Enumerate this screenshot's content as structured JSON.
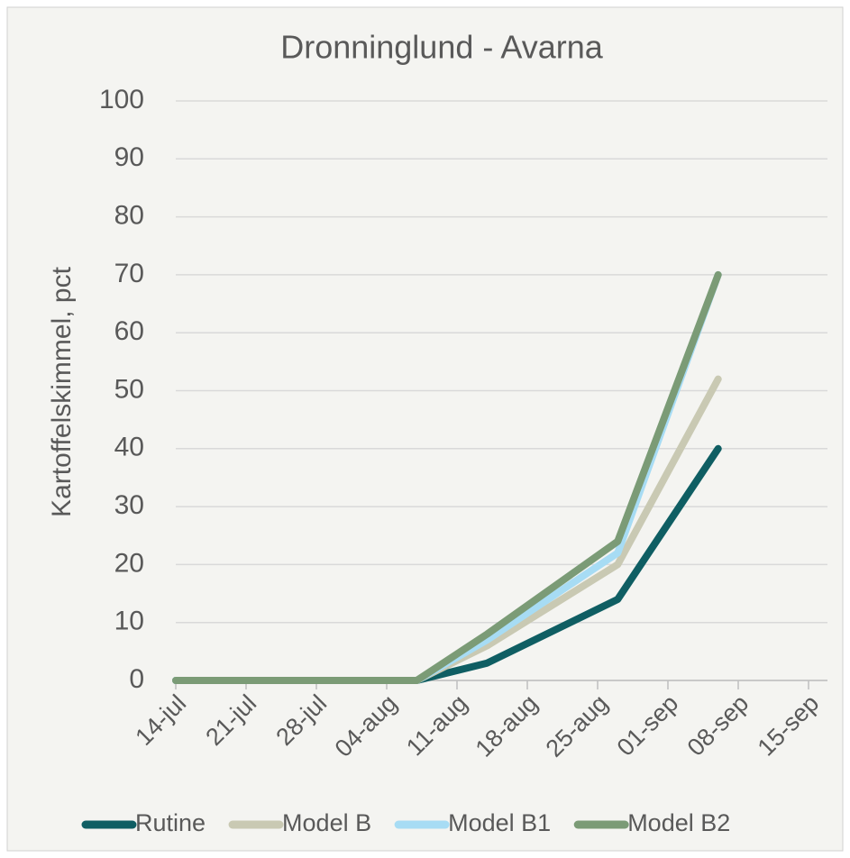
{
  "chart_data": {
    "type": "line",
    "title": "Dronninglund - Avarna",
    "y_label": "Kartoffelskimmel,  pct",
    "x": [
      "14-jul",
      "07-aug",
      "14-aug",
      "27-aug",
      "06-sep"
    ],
    "series": [
      {
        "name": "Rutine",
        "color": "#0f5e63",
        "values": [
          0,
          0,
          3,
          14,
          40
        ]
      },
      {
        "name": "Model B",
        "color": "#c9c9b3",
        "values": [
          0,
          0,
          6,
          20,
          52
        ]
      },
      {
        "name": "Model B1",
        "color": "#a7dcf4",
        "values": [
          0,
          0,
          7,
          22,
          70
        ]
      },
      {
        "name": "Model B2",
        "color": "#7b9b76",
        "values": [
          0,
          0,
          8,
          24,
          70
        ]
      }
    ],
    "xlim": [
      "14-jul",
      "15-sep"
    ],
    "xticks": [
      "14-jul",
      "21-jul",
      "28-jul",
      "04-aug",
      "11-aug",
      "18-aug",
      "25-aug",
      "01-sep",
      "08-sep",
      "15-sep"
    ],
    "ylim": [
      0,
      100
    ],
    "yticks": [
      0,
      10,
      20,
      30,
      40,
      50,
      60,
      70,
      80,
      90,
      100
    ],
    "grid": true,
    "legend": "bottom"
  }
}
